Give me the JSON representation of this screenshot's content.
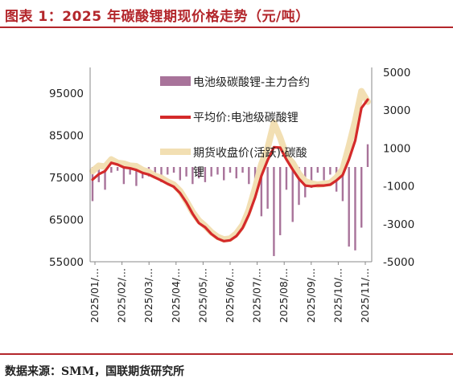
{
  "title": "图表 1：2025 年碳酸锂期现价格走势（元/吨）",
  "source": "数据来源：SMM，国联期货研究所",
  "colors": {
    "accent": "#b3262b",
    "basis_bar": "#a8739a",
    "spot_line": "#d42a2a",
    "futures_line": "#f2dfb3"
  },
  "chart_data": {
    "type": "line",
    "x": [
      "2025/01/02",
      "2025/01/09",
      "2025/01/16",
      "2025/01/23",
      "2025/02/06",
      "2025/02/13",
      "2025/02/20",
      "2025/02/27",
      "2025/03/06",
      "2025/03/13",
      "2025/03/20",
      "2025/03/27",
      "2025/04/03",
      "2025/04/10",
      "2025/04/17",
      "2025/04/24",
      "2025/05/08",
      "2025/05/15",
      "2025/05/22",
      "2025/05/29",
      "2025/06/05",
      "2025/06/12",
      "2025/06/19",
      "2025/06/26",
      "2025/07/03",
      "2025/07/10",
      "2025/07/17",
      "2025/07/24",
      "2025/07/31",
      "2025/08/07",
      "2025/08/14",
      "2025/08/21",
      "2025/08/28",
      "2025/09/04",
      "2025/09/11",
      "2025/09/18",
      "2025/09/25",
      "2025/10/09",
      "2025/10/16",
      "2025/10/23",
      "2025/10/30",
      "2025/11/06",
      "2025/11/13",
      "2025/11/20",
      "2025/11/27"
    ],
    "x_ticks": [
      "2025/01/...",
      "2025/02/...",
      "2025/03/...",
      "2025/04/...",
      "2025/05/...",
      "2025/06/...",
      "2025/07/...",
      "2025/08/...",
      "2025/09/...",
      "2025/10/...",
      "2025/11/..."
    ],
    "y_left": {
      "ticks": [
        "55000",
        "65000",
        "75000",
        "85000",
        "95000"
      ],
      "lim": [
        55000,
        100000
      ]
    },
    "y_right": {
      "ticks": [
        "-5000",
        "-3000",
        "-1000",
        "1000",
        "3000",
        "5000"
      ],
      "lim": [
        -5000,
        5000
      ]
    },
    "series": [
      {
        "name": "电池级碳酸锂-主力合约",
        "type": "bar",
        "axis": "right",
        "values": [
          -1800,
          -800,
          -1200,
          -300,
          -200,
          -900,
          -400,
          -1000,
          -600,
          -500,
          -300,
          -800,
          -400,
          -300,
          -700,
          -500,
          -900,
          -600,
          -800,
          -500,
          -400,
          -700,
          -300,
          -600,
          -300,
          -900,
          -1300,
          -2600,
          -2200,
          -4700,
          -3600,
          -1200,
          -2900,
          -2000,
          -1600,
          -1100,
          -300,
          -700,
          -400,
          -1300,
          -1800,
          -4200,
          -4400,
          -3200,
          1200
        ]
      },
      {
        "name": "平均价:电池级碳酸锂",
        "type": "line",
        "axis": "left",
        "values": [
          74500,
          75800,
          76500,
          78500,
          78100,
          77400,
          77200,
          76800,
          76100,
          75700,
          75000,
          74300,
          73500,
          72800,
          71300,
          69100,
          66400,
          64200,
          63200,
          61600,
          60500,
          59900,
          60100,
          61100,
          63000,
          66200,
          70300,
          75400,
          79100,
          82200,
          82100,
          79300,
          76900,
          74700,
          73100,
          72900,
          73100,
          73100,
          73300,
          74300,
          75600,
          79300,
          83800,
          91500,
          93500
        ]
      },
      {
        "name": "期货收盘价(活跃):碳酸锂",
        "type": "line",
        "axis": "left",
        "values": [
          76500,
          77800,
          77600,
          79300,
          78500,
          78300,
          77800,
          77700,
          76800,
          76300,
          75400,
          74900,
          74000,
          73300,
          71800,
          69400,
          66800,
          64800,
          63500,
          62000,
          60900,
          60300,
          60500,
          61700,
          63700,
          67300,
          72500,
          78200,
          82000,
          88000,
          84500,
          80100,
          78500,
          75900,
          74100,
          73600,
          73300,
          73500,
          73700,
          75000,
          77000,
          82500,
          88500,
          95500,
          93000
        ]
      }
    ]
  }
}
